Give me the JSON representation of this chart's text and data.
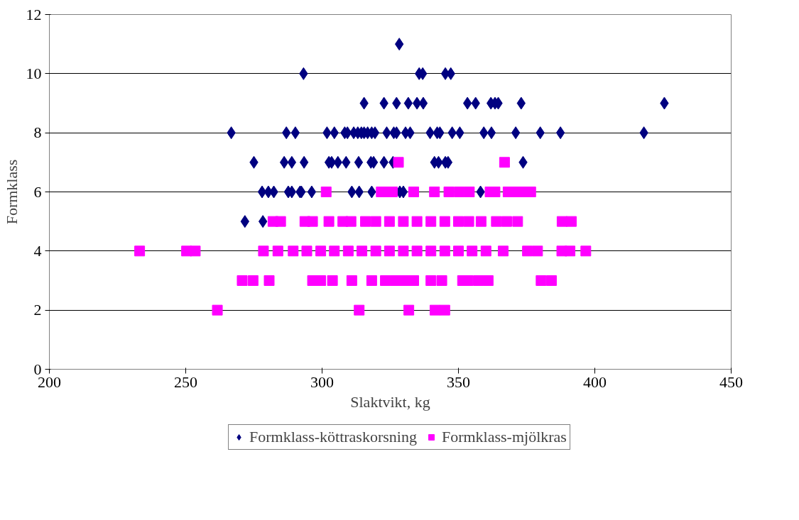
{
  "chart_data": {
    "type": "scatter",
    "xlabel": "Slaktvikt, kg",
    "ylabel": "Formklass",
    "xlim": [
      200,
      450
    ],
    "xticks": [
      200,
      250,
      300,
      350,
      400,
      450
    ],
    "ylim": [
      0,
      12
    ],
    "yticks": [
      0,
      2,
      4,
      6,
      8,
      10,
      12
    ],
    "grid": "y",
    "legend": "bottom",
    "series": [
      {
        "name": "Formklass-köttraskorsning",
        "color": "#000080",
        "marker": "diamond",
        "x": [
          328.3,
          293.2,
          335.6,
          336.9,
          345.2,
          347.2,
          315.4,
          322.7,
          327.3,
          331.6,
          334.8,
          337.1,
          353.3,
          356.3,
          361.9,
          363.4,
          364.6,
          373,
          425.5,
          266.7,
          286.9,
          290.2,
          301.8,
          304.5,
          308.3,
          309.3,
          311.6,
          313.1,
          314.4,
          315.4,
          316.7,
          318.2,
          319.4,
          323.7,
          326.3,
          327.3,
          330.6,
          332.3,
          339.6,
          342.2,
          343.2,
          347.7,
          350.5,
          359.3,
          362.1,
          371,
          380,
          387.4,
          418,
          275,
          286.1,
          288.9,
          293.4,
          302.5,
          303.5,
          305.8,
          308.8,
          313.4,
          317.9,
          318.9,
          322.7,
          326,
          341.2,
          342.7,
          345.2,
          346.2,
          373.7,
          278,
          280.3,
          282.3,
          287.6,
          288.9,
          291.9,
          292.4,
          296.2,
          310.9,
          313.6,
          318.2,
          328.5,
          329.8,
          358.1,
          271.7,
          278.3
        ],
        "values": [
          11,
          10,
          10,
          10,
          10,
          10,
          9,
          9,
          9,
          9,
          9,
          9,
          9,
          9,
          9,
          9,
          9,
          9,
          9,
          8,
          8,
          8,
          8,
          8,
          8,
          8,
          8,
          8,
          8,
          8,
          8,
          8,
          8,
          8,
          8,
          8,
          8,
          8,
          8,
          8,
          8,
          8,
          8,
          8,
          8,
          8,
          8,
          8,
          8,
          7,
          7,
          7,
          7,
          7,
          7,
          7,
          7,
          7,
          7,
          7,
          7,
          7,
          7,
          7,
          7,
          7,
          7,
          6,
          6,
          6,
          6,
          6,
          6,
          6,
          6,
          6,
          6,
          6,
          6,
          6,
          6,
          5,
          5
        ]
      },
      {
        "name": "Formklass-mjölkras",
        "color": "#ff00ff",
        "marker": "square",
        "x": [
          328,
          366.9,
          301.5,
          321.7,
          323.7,
          325.8,
          333.6,
          341.2,
          346.5,
          350.3,
          354,
          361.6,
          363.4,
          368.2,
          370.7,
          373.2,
          376.5,
          282,
          284.8,
          293.7,
          296.5,
          302.5,
          307.6,
          310.6,
          315.9,
          319.7,
          324.7,
          329.8,
          334.8,
          339.9,
          345,
          350,
          353.8,
          358.3,
          363.9,
          367.7,
          371.7,
          388,
          391.4,
          233.1,
          250.3,
          253.5,
          278.5,
          283.8,
          289.4,
          294.4,
          299.5,
          304.5,
          309.6,
          314.6,
          319.7,
          324.7,
          329.8,
          334.8,
          339.9,
          345,
          350,
          355,
          360.1,
          366.4,
          375.3,
          379,
          387.9,
          390.9,
          396.7,
          270.7,
          274.7,
          280.6,
          296.5,
          299.5,
          303.8,
          310.9,
          318.2,
          323.2,
          326.8,
          330.3,
          333.6,
          339.9,
          343.9,
          351.5,
          353.5,
          357.3,
          360.9,
          380.3,
          384.1,
          261.6,
          313.6,
          331.8,
          341.4,
          345
        ],
        "values": [
          7,
          7,
          6,
          6,
          6,
          6,
          6,
          6,
          6,
          6,
          6,
          6,
          6,
          6,
          6,
          6,
          6,
          5,
          5,
          5,
          5,
          5,
          5,
          5,
          5,
          5,
          5,
          5,
          5,
          5,
          5,
          5,
          5,
          5,
          5,
          5,
          5,
          5,
          5,
          4,
          4,
          4,
          4,
          4,
          4,
          4,
          4,
          4,
          4,
          4,
          4,
          4,
          4,
          4,
          4,
          4,
          4,
          4,
          4,
          4,
          4,
          4,
          4,
          4,
          4,
          3,
          3,
          3,
          3,
          3,
          3,
          3,
          3,
          3,
          3,
          3,
          3,
          3,
          3,
          3,
          3,
          3,
          3,
          3,
          3,
          2,
          2,
          2,
          2,
          2
        ]
      }
    ]
  }
}
